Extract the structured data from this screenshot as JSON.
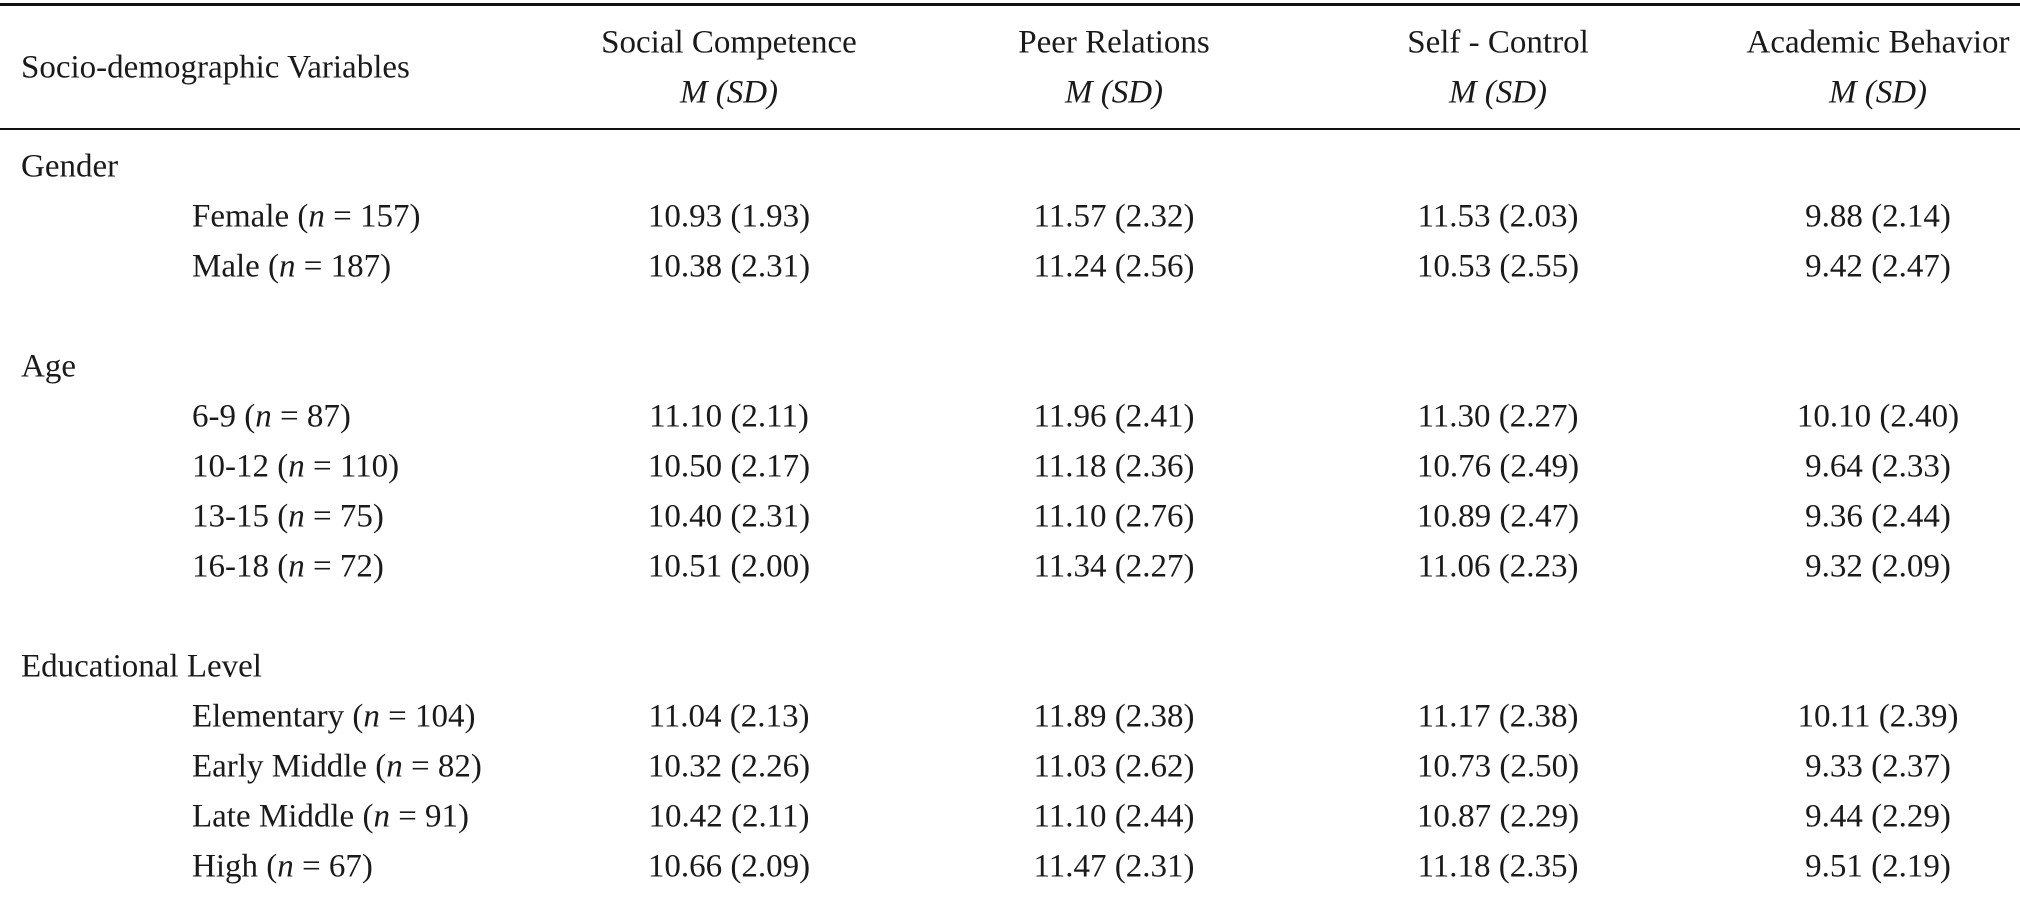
{
  "header": {
    "variable_label": "Socio-demographic Variables",
    "columns": [
      {
        "name": "Social Competence",
        "stat": "M (SD)"
      },
      {
        "name": "Peer Relations",
        "stat": "M (SD)"
      },
      {
        "name": "Self - Control",
        "stat": "M (SD)"
      },
      {
        "name": "Academic Behavior",
        "stat": "M (SD)"
      }
    ]
  },
  "groups": [
    {
      "name": "Gender",
      "rows": [
        {
          "label": "Female (n = 157)",
          "values": [
            "10.93 (1.93)",
            "11.57 (2.32)",
            "11.53 (2.03)",
            "9.88 (2.14)"
          ]
        },
        {
          "label": "Male (n = 187)",
          "values": [
            "10.38 (2.31)",
            "11.24 (2.56)",
            "10.53 (2.55)",
            "9.42 (2.47)"
          ]
        }
      ]
    },
    {
      "name": "Age",
      "rows": [
        {
          "label": "6-9 (n = 87)",
          "values": [
            "11.10 (2.11)",
            "11.96 (2.41)",
            "11.30 (2.27)",
            "10.10 (2.40)"
          ]
        },
        {
          "label": "10-12 (n = 110)",
          "values": [
            "10.50 (2.17)",
            "11.18 (2.36)",
            "10.76 (2.49)",
            "9.64 (2.33)"
          ]
        },
        {
          "label": "13-15 (n = 75)",
          "values": [
            "10.40 (2.31)",
            "11.10 (2.76)",
            "10.89 (2.47)",
            "9.36 (2.44)"
          ]
        },
        {
          "label": "16-18 (n = 72)",
          "values": [
            "10.51 (2.00)",
            "11.34 (2.27)",
            "11.06 (2.23)",
            "9.32 (2.09)"
          ]
        }
      ]
    },
    {
      "name": "Educational Level",
      "rows": [
        {
          "label": "Elementary (n = 104)",
          "values": [
            "11.04 (2.13)",
            "11.89 (2.38)",
            "11.17 (2.38)",
            "10.11 (2.39)"
          ]
        },
        {
          "label": "Early Middle (n = 82)",
          "values": [
            "10.32 (2.26)",
            "11.03 (2.62)",
            "10.73 (2.50)",
            "9.33 (2.37)"
          ]
        },
        {
          "label": "Late Middle (n = 91)",
          "values": [
            "10.42 (2.11)",
            "11.10 (2.44)",
            "10.87 (2.29)",
            "9.44 (2.29)"
          ]
        },
        {
          "label": "High (n = 67)",
          "values": [
            "10.66 (2.09)",
            "11.47 (2.31)",
            "11.18 (2.35)",
            "9.51 (2.19)"
          ]
        }
      ]
    }
  ]
}
